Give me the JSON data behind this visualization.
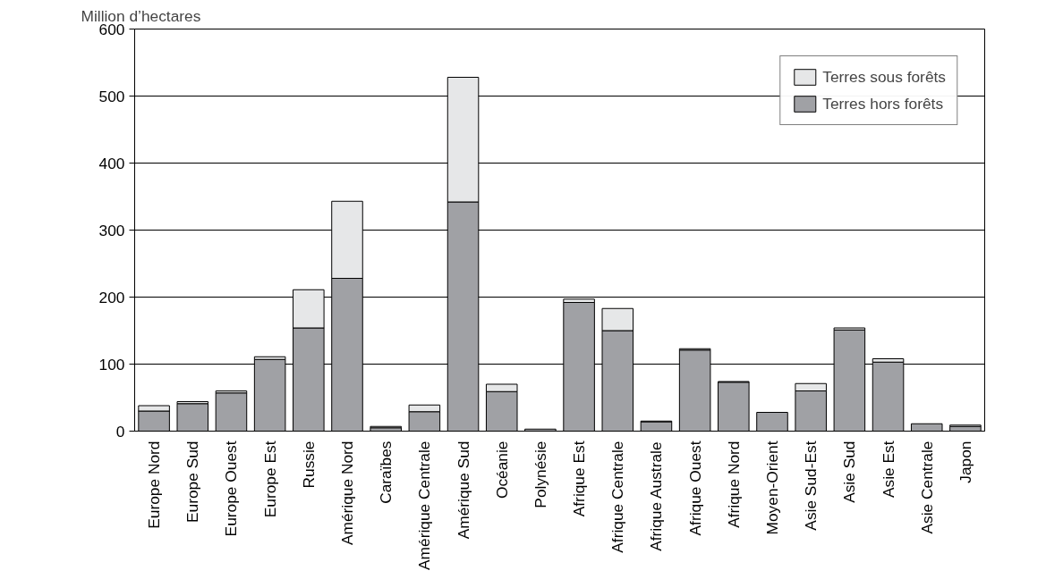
{
  "chart_data": {
    "type": "bar",
    "stacked": true,
    "ylabel": "Million d’hectares",
    "categories": [
      "Europe Nord",
      "Europe Sud",
      "Europe Ouest",
      "Europe Est",
      "Russie",
      "Amérique Nord",
      "Caraïbes",
      "Amérique Centrale",
      "Amérique Sud",
      "Océanie",
      "Polynésie",
      "Afrique Est",
      "Afrique Centrale",
      "Afrique Australe",
      "Afrique Ouest",
      "Afrique Nord",
      "Moyen-Orient",
      "Asie Sud-Est",
      "Asie Sud",
      "Asie Est",
      "Asie Centrale",
      "Japon"
    ],
    "series": [
      {
        "name": "Terres hors forêts",
        "color": "#a0a1a5",
        "values": [
          30,
          41,
          57,
          107,
          154,
          228,
          5,
          29,
          342,
          59,
          3,
          192,
          150,
          14,
          121,
          73,
          28,
          60,
          151,
          103,
          11,
          7
        ]
      },
      {
        "name": "Terres sous forêts",
        "color": "#e6e7e8",
        "values": [
          8,
          3,
          3,
          4,
          57,
          115,
          2,
          10,
          186,
          11,
          null,
          5,
          33,
          1,
          2,
          1,
          null,
          11,
          3,
          5,
          null,
          2
        ]
      }
    ],
    "ylim": [
      0,
      600
    ],
    "yticks": [
      0,
      100,
      200,
      300,
      400,
      500,
      600
    ],
    "grid": "y",
    "legend": "top right"
  }
}
